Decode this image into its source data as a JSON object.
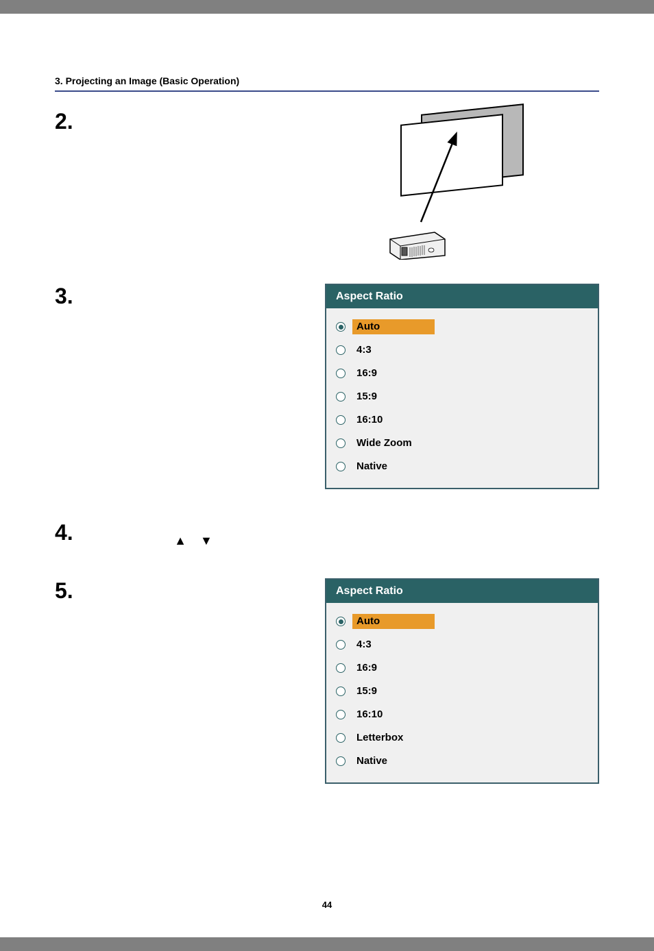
{
  "header": "3. Projecting an Image (Basic Operation)",
  "page_number": "44",
  "steps": {
    "s2": "2.",
    "s3": "3.",
    "s4": "4.",
    "s5": "5."
  },
  "arrows": {
    "up": "▲",
    "down": "▼"
  },
  "menu1": {
    "title": "Aspect Ratio",
    "title_bg": "#2a6265",
    "title_color": "#ffffff",
    "highlight_bg": "#e89a2a",
    "items": [
      {
        "label": "Auto",
        "selected": true
      },
      {
        "label": "4:3",
        "selected": false
      },
      {
        "label": "16:9",
        "selected": false
      },
      {
        "label": "15:9",
        "selected": false
      },
      {
        "label": "16:10",
        "selected": false
      },
      {
        "label": "Wide Zoom",
        "selected": false
      },
      {
        "label": "Native",
        "selected": false
      }
    ]
  },
  "menu2": {
    "title": "Aspect Ratio",
    "title_bg": "#2a6265",
    "title_color": "#ffffff",
    "highlight_bg": "#e89a2a",
    "items": [
      {
        "label": "Auto",
        "selected": true
      },
      {
        "label": "4:3",
        "selected": false
      },
      {
        "label": "16:9",
        "selected": false
      },
      {
        "label": "15:9",
        "selected": false
      },
      {
        "label": "16:10",
        "selected": false
      },
      {
        "label": "Letterbox",
        "selected": false
      },
      {
        "label": "Native",
        "selected": false
      }
    ]
  }
}
